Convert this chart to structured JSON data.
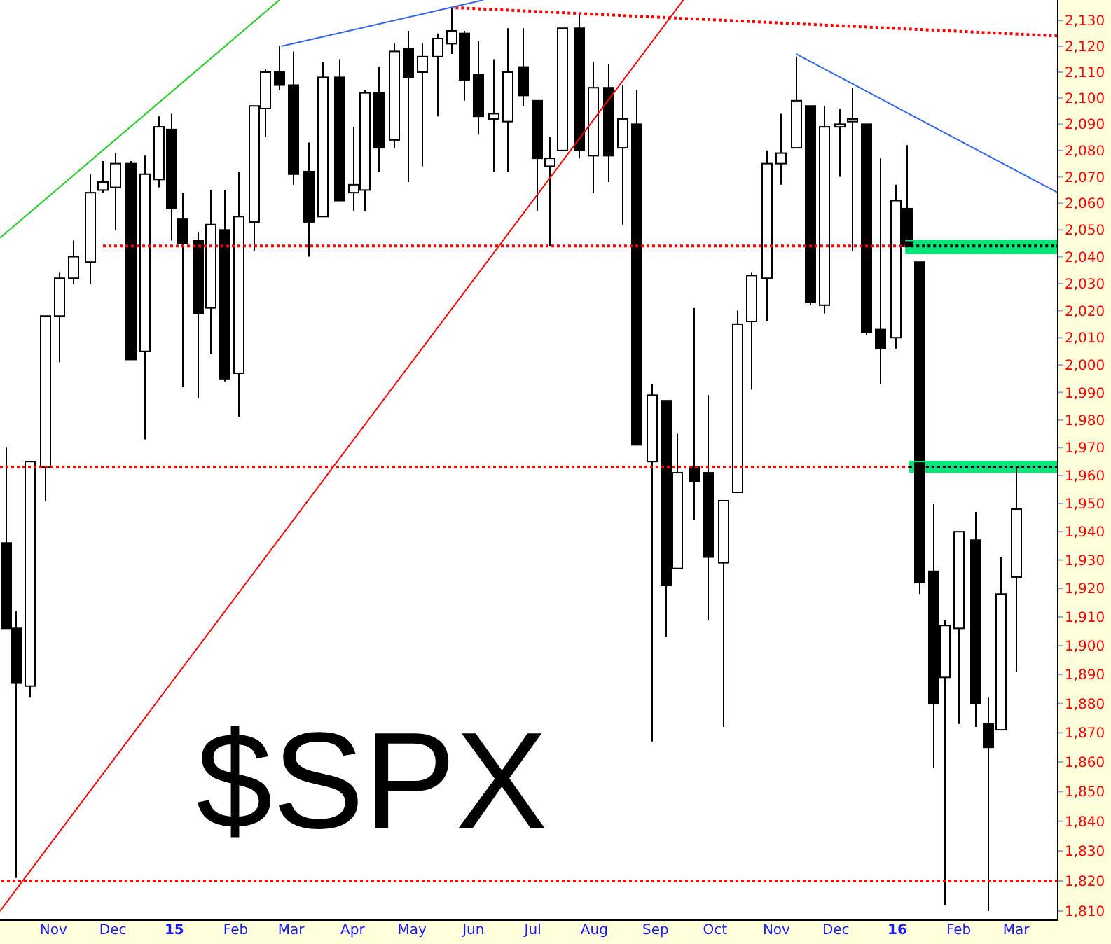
{
  "chart_data": {
    "type": "candlestick",
    "title": "$SPX",
    "color": "#000000",
    "log": true,
    "x": [
      "2014-10-08",
      "2014-10-13",
      "2014-10-20",
      "2014-10-28",
      "2014-11-04",
      "2014-11-11",
      "2014-11-19",
      "2014-11-26",
      "2014-12-02",
      "2014-12-10",
      "2014-12-17",
      "2014-12-24",
      "2014-12-30",
      "2015-01-05",
      "2015-01-13",
      "2015-01-19",
      "2015-01-26",
      "2015-02-02",
      "2015-02-10",
      "2015-02-16",
      "2015-02-23",
      "2015-03-02",
      "2015-03-10",
      "2015-03-17",
      "2015-03-25",
      "2015-04-01",
      "2015-04-07",
      "2015-04-14",
      "2015-04-22",
      "2015-04-29",
      "2015-05-06",
      "2015-05-14",
      "2015-05-21",
      "2015-05-27",
      "2015-06-03",
      "2015-06-11",
      "2015-06-18",
      "2015-06-26",
      "2015-07-03",
      "2015-07-09",
      "2015-07-16",
      "2015-07-24",
      "2015-07-31",
      "2015-08-08",
      "2015-08-15",
      "2015-08-22",
      "2015-08-30",
      "2015-09-06",
      "2015-09-12",
      "2015-09-20",
      "2015-09-27",
      "2015-10-05",
      "2015-10-12",
      "2015-10-19",
      "2015-10-27",
      "2015-11-03",
      "2015-11-11",
      "2015-11-18",
      "2015-11-25",
      "2015-12-03",
      "2015-12-09",
      "2015-12-16",
      "2015-12-23",
      "2015-12-31",
      "2016-01-06",
      "2016-01-12",
      "2016-01-19",
      "2016-01-25",
      "2016-02-01",
      "2016-02-09",
      "2016-02-16",
      "2016-02-22",
      "2016-03-01"
    ],
    "ohlc": [
      [
        1936,
        1970,
        1906,
        1906
      ],
      [
        1906,
        1912,
        1821,
        1887
      ],
      [
        1886,
        1965,
        1882,
        1965
      ],
      [
        1963,
        2018,
        1951,
        2018
      ],
      [
        2018,
        2034,
        2001,
        2032
      ],
      [
        2032,
        2046,
        2030,
        2040
      ],
      [
        2038,
        2071,
        2030,
        2064
      ],
      [
        2065,
        2076,
        2064,
        2068
      ],
      [
        2066,
        2079,
        2050,
        2075
      ],
      [
        2075,
        2076,
        2002,
        2002
      ],
      [
        2005,
        2078,
        1973,
        2071
      ],
      [
        2069,
        2093,
        2066,
        2089
      ],
      [
        2088,
        2094,
        2046,
        2058
      ],
      [
        2054,
        2064,
        1992,
        2045
      ],
      [
        2046,
        2049,
        1988,
        2019
      ],
      [
        2021,
        2065,
        2004,
        2052
      ],
      [
        2050,
        2065,
        1994,
        1995
      ],
      [
        1997,
        2072,
        1981,
        2055
      ],
      [
        2053,
        2097,
        2042,
        2097
      ],
      [
        2096,
        2111,
        2085,
        2110
      ],
      [
        2110,
        2120,
        2103,
        2105
      ],
      [
        2105,
        2118,
        2067,
        2071
      ],
      [
        2072,
        2083,
        2040,
        2053
      ],
      [
        2055,
        2114,
        2055,
        2108
      ],
      [
        2108,
        2115,
        2061,
        2061
      ],
      [
        2064,
        2089,
        2057,
        2067
      ],
      [
        2065,
        2103,
        2057,
        2102
      ],
      [
        2102,
        2112,
        2072,
        2081
      ],
      [
        2084,
        2121,
        2081,
        2118
      ],
      [
        2119,
        2126,
        2068,
        2108
      ],
      [
        2110,
        2121,
        2074,
        2116
      ],
      [
        2116,
        2125,
        2093,
        2123
      ],
      [
        2121,
        2135,
        2117,
        2126
      ],
      [
        2125,
        2126,
        2099,
        2107
      ],
      [
        2109,
        2122,
        2086,
        2093
      ],
      [
        2092,
        2115,
        2072,
        2094
      ],
      [
        2091,
        2127,
        2072,
        2110
      ],
      [
        2112,
        2127,
        2097,
        2101
      ],
      [
        2099,
        2099,
        2057,
        2077
      ],
      [
        2074,
        2085,
        2044,
        2077
      ],
      [
        2080,
        2127,
        2080,
        2127
      ],
      [
        2127,
        2133,
        2077,
        2080
      ],
      [
        2078,
        2114,
        2064,
        2104
      ],
      [
        2104,
        2113,
        2068,
        2078
      ],
      [
        2081,
        2105,
        2052,
        2092
      ],
      [
        2090,
        2103,
        1971,
        1971
      ],
      [
        1965,
        1993,
        1867,
        1989
      ],
      [
        1987,
        1987,
        1903,
        1921
      ],
      [
        1927,
        1975,
        1927,
        1961
      ],
      [
        1963,
        2021,
        1944,
        1958
      ],
      [
        1961,
        1989,
        1909,
        1931
      ],
      [
        1929,
        1951,
        1872,
        1951
      ],
      [
        1954,
        2020,
        1954,
        2015
      ],
      [
        2016,
        2034,
        1991,
        2033
      ],
      [
        2032,
        2080,
        2016,
        2075
      ],
      [
        2075,
        2094,
        2067,
        2079
      ],
      [
        2081,
        2116,
        2081,
        2099
      ],
      [
        2097,
        2097,
        2022,
        2023
      ],
      [
        2022,
        2097,
        2019,
        2089
      ],
      [
        2089,
        2096,
        2070,
        2090
      ],
      [
        2091,
        2104,
        2042,
        2092
      ],
      [
        2090,
        2090,
        2011,
        2012
      ],
      [
        2013,
        2077,
        1993,
        2006
      ],
      [
        2010,
        2067,
        2006,
        2061
      ],
      [
        2058,
        2082,
        2044,
        2044
      ],
      [
        2038,
        2038,
        1918,
        1922
      ],
      [
        1926,
        1950,
        1858,
        1880
      ],
      [
        1889,
        1909,
        1812,
        1907
      ],
      [
        1906,
        1940,
        1873,
        1940
      ],
      [
        1937,
        1947,
        1872,
        1880
      ],
      [
        1873,
        1882,
        1810,
        1865
      ],
      [
        1871,
        1931,
        1871,
        1918
      ],
      [
        1924,
        1963,
        1891,
        1948
      ]
    ],
    "series": [
      {
        "type": "line",
        "x": [
          "2014-10-05",
          "2015-02-23"
        ],
        "values": [
          2047,
          2138
        ],
        "color": "#22cc22",
        "line_style": "solid"
      },
      {
        "type": "line",
        "x": [
          "2015-02-24",
          "2015-06-06"
        ],
        "values": [
          2120,
          2138
        ],
        "color": "#3366ee",
        "line_style": "solid"
      },
      {
        "type": "line",
        "x": [
          "2015-05-23",
          "2016-03-22"
        ],
        "values": [
          2135,
          2124
        ],
        "color": "#ff0000",
        "line_style": "dotted"
      },
      {
        "type": "line",
        "x": [
          "2014-10-05",
          "2015-09-15"
        ],
        "values": [
          1810,
          2138
        ],
        "color": "#ff0000",
        "line_style": "solid"
      },
      {
        "type": "line",
        "x": [
          "2015-11-11",
          "2016-03-22"
        ],
        "values": [
          2117,
          2064
        ],
        "color": "#3366ee",
        "line_style": "solid"
      },
      {
        "type": "line",
        "x": [
          "2014-11-26",
          "2016-01-05"
        ],
        "values": [
          2044,
          2044
        ],
        "color": "#ff0000",
        "line_style": "dotted"
      },
      {
        "type": "line",
        "x": [
          "2014-10-05",
          "2016-01-07"
        ],
        "values": [
          1963,
          1963
        ],
        "color": "#ff0000",
        "line_style": "dotted"
      },
      {
        "type": "line",
        "x": [
          "2016-01-05",
          "2016-02-12",
          "2016-03-22"
        ],
        "values": [
          2046,
          2046,
          2046
        ],
        "lower": [
          2041,
          2041,
          2041
        ],
        "upper": [
          2046,
          2046,
          2046
        ],
        "color": "#00e676",
        "line_style": "solid"
      },
      {
        "type": "line",
        "x": [
          "2016-01-05",
          "2016-03-22"
        ],
        "values": [
          2044,
          2044
        ],
        "color": "#000000",
        "line_style": "dotted"
      },
      {
        "type": "line",
        "x": [
          "2016-01-07",
          "2016-02-14",
          "2016-03-22"
        ],
        "values": [
          1965,
          1965,
          1965
        ],
        "lower": [
          1961,
          1961,
          1961
        ],
        "upper": [
          1965,
          1965,
          1965
        ],
        "color": "#00e87a",
        "line_style": "solid"
      },
      {
        "type": "line",
        "x": [
          "2016-01-07",
          "2016-03-22"
        ],
        "values": [
          1963,
          1963
        ],
        "color": "#000000",
        "line_style": "dotted"
      }
    ],
    "ref_lines": [
      {
        "axis": "y",
        "value": 1820,
        "color": "#ff0000",
        "line_style": "dotted"
      }
    ],
    "xlim": [
      "2014-10-05",
      "2016-03-22"
    ],
    "xticks": [
      {
        "value": "2014-11-01",
        "label": "Nov"
      },
      {
        "value": "2014-12-01",
        "label": "Dec"
      },
      {
        "value": "2015-01-01",
        "label": "15"
      },
      {
        "value": "2015-02-01",
        "label": "Feb"
      },
      {
        "value": "2015-03-01",
        "label": "Mar"
      },
      {
        "value": "2015-04-01",
        "label": "Apr"
      },
      {
        "value": "2015-05-01",
        "label": "May"
      },
      {
        "value": "2015-06-01",
        "label": "Jun"
      },
      {
        "value": "2015-07-01",
        "label": "Jul"
      },
      {
        "value": "2015-08-01",
        "label": "Aug"
      },
      {
        "value": "2015-09-01",
        "label": "Sep"
      },
      {
        "value": "2015-10-01",
        "label": "Oct"
      },
      {
        "value": "2015-11-01",
        "label": "Nov"
      },
      {
        "value": "2015-12-01",
        "label": "Dec"
      },
      {
        "value": "2016-01-01",
        "label": "16"
      },
      {
        "value": "2016-02-01",
        "label": "Feb"
      },
      {
        "value": "2016-03-01",
        "label": "Mar"
      }
    ],
    "ylim": [
      1807,
      2138
    ],
    "yticks": [
      {
        "value": 1810,
        "label": "1,810"
      },
      {
        "value": 1820,
        "label": "1,820"
      },
      {
        "value": 1830,
        "label": "1,830"
      },
      {
        "value": 1840,
        "label": "1,840"
      },
      {
        "value": 1850,
        "label": "1,850"
      },
      {
        "value": 1860,
        "label": "1,860"
      },
      {
        "value": 1870,
        "label": "1,870"
      },
      {
        "value": 1880,
        "label": "1,880"
      },
      {
        "value": 1890,
        "label": "1,890"
      },
      {
        "value": 1900,
        "label": "1,900"
      },
      {
        "value": 1910,
        "label": "1,910"
      },
      {
        "value": 1920,
        "label": "1,920"
      },
      {
        "value": 1930,
        "label": "1,930"
      },
      {
        "value": 1940,
        "label": "1,940"
      },
      {
        "value": 1950,
        "label": "1,950"
      },
      {
        "value": 1960,
        "label": "1,960"
      },
      {
        "value": 1970,
        "label": "1,970"
      },
      {
        "value": 1980,
        "label": "1,980"
      },
      {
        "value": 1990,
        "label": "1,990"
      },
      {
        "value": 2000,
        "label": "2,000"
      },
      {
        "value": 2010,
        "label": "2,010"
      },
      {
        "value": 2020,
        "label": "2,020"
      },
      {
        "value": 2030,
        "label": "2,030"
      },
      {
        "value": 2040,
        "label": "2,040"
      },
      {
        "value": 2050,
        "label": "2,050"
      },
      {
        "value": 2060,
        "label": "2,060"
      },
      {
        "value": 2070,
        "label": "2,070"
      },
      {
        "value": 2080,
        "label": "2,080"
      },
      {
        "value": 2090,
        "label": "2,090"
      },
      {
        "value": 2100,
        "label": "2,100"
      },
      {
        "value": 2110,
        "label": "2,110"
      },
      {
        "value": 2120,
        "label": "2,120"
      },
      {
        "value": 2130,
        "label": "2,130"
      }
    ]
  }
}
